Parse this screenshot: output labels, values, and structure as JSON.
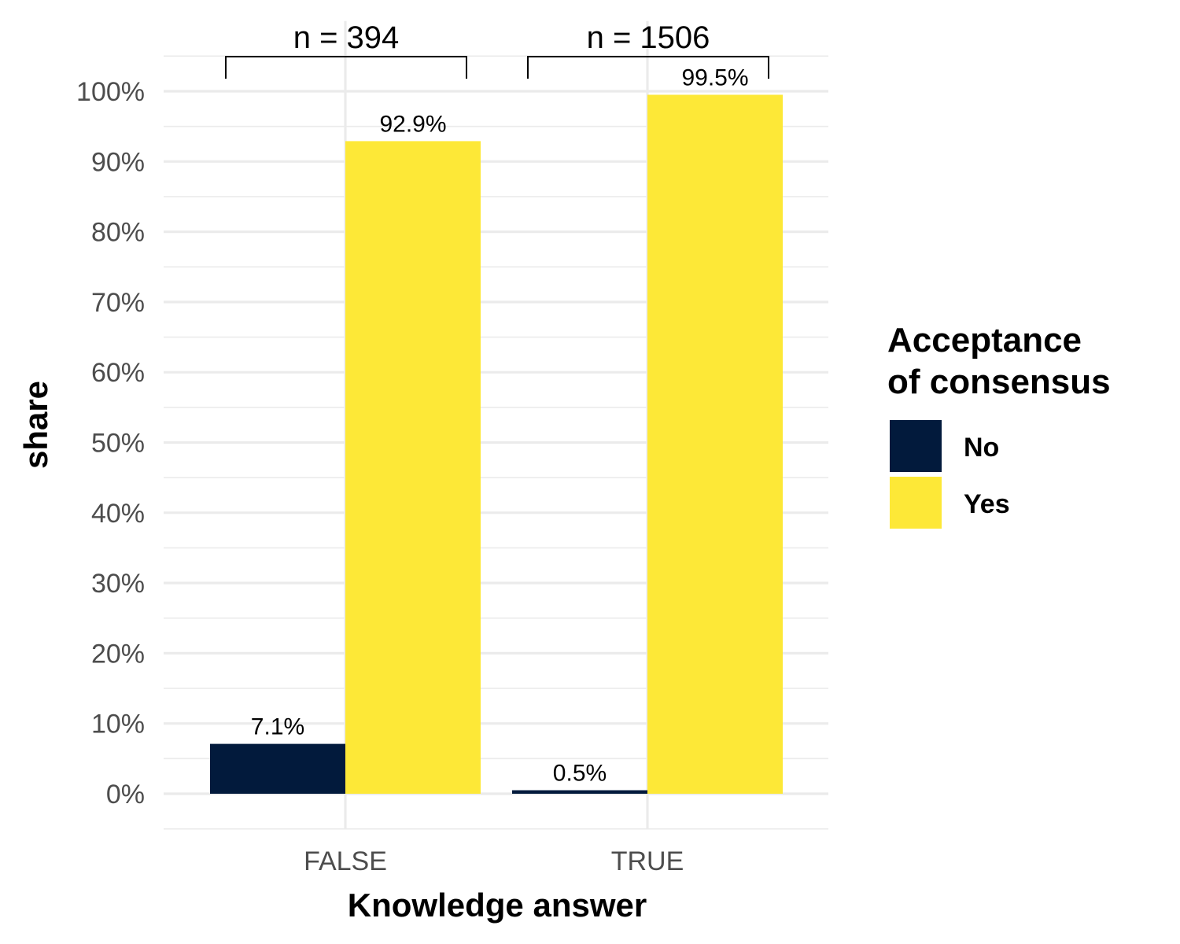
{
  "chart_data": {
    "type": "bar",
    "xlabel": "Knowledge answer",
    "ylabel": "share",
    "categories": [
      "FALSE",
      "TRUE"
    ],
    "series": [
      {
        "name": "No",
        "color": "#021A3C",
        "values": [
          0.071,
          0.005
        ],
        "labels": [
          "7.1%",
          "0.5%"
        ]
      },
      {
        "name": "Yes",
        "color": "#FDE837",
        "values": [
          0.929,
          0.995
        ],
        "labels": [
          "92.9%",
          "99.5%"
        ]
      }
    ],
    "ylim": [
      -0.05,
      1.1
    ],
    "yticks": [
      0,
      0.1,
      0.2,
      0.3,
      0.4,
      0.5,
      0.6,
      0.7,
      0.8,
      0.9,
      1.0
    ],
    "ytick_labels": [
      "0%",
      "10%",
      "20%",
      "30%",
      "40%",
      "50%",
      "60%",
      "70%",
      "80%",
      "90%",
      "100%"
    ],
    "grid": true,
    "legend": {
      "title_lines": [
        "Acceptance",
        "of consensus"
      ],
      "placement": "right"
    },
    "annotations": [
      {
        "category": "FALSE",
        "text": "n = 394"
      },
      {
        "category": "TRUE",
        "text": "n = 1506"
      }
    ]
  }
}
